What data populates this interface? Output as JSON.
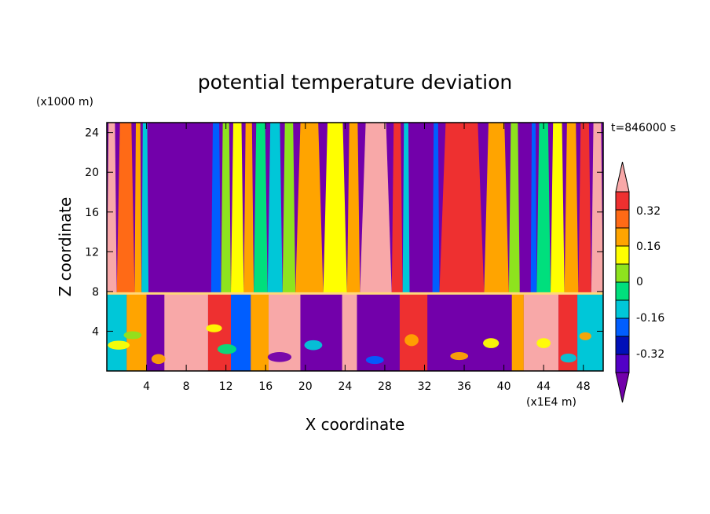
{
  "chart_data": {
    "type": "heatmap",
    "title": "potential temperature deviation",
    "xlabel": "X coordinate",
    "ylabel": "Z coordinate",
    "x_unit": "(x1E4 m)",
    "y_unit": "(x1000 m)",
    "time_label": "t=846000 s",
    "x_ticks": [
      4,
      8,
      12,
      16,
      20,
      24,
      28,
      32,
      36,
      40,
      44,
      48
    ],
    "y_ticks": [
      4,
      8,
      12,
      16,
      20,
      24
    ],
    "xlim": [
      0,
      50
    ],
    "ylim": [
      0,
      25
    ],
    "colorbar_ticks": [
      "0.32",
      "0.16",
      "0",
      "-0.16",
      "-0.32"
    ],
    "colorbar_levels": [
      {
        "label": "> 0.40",
        "color": "#f8a8a8"
      },
      {
        "label": "0.32 to 0.40",
        "color": "#ee3030"
      },
      {
        "label": "0.24 to 0.32",
        "color": "#ff6a16"
      },
      {
        "label": "0.16 to 0.24",
        "color": "#ffa400"
      },
      {
        "label": "0.08 to 0.16",
        "color": "#ffff00"
      },
      {
        "label": "0 to 0.08",
        "color": "#8ee31e"
      },
      {
        "label": "-0.08 to 0",
        "color": "#00df7d"
      },
      {
        "label": "-0.16 to -0.08",
        "color": "#00c7d8"
      },
      {
        "label": "-0.24 to -0.16",
        "color": "#005eff"
      },
      {
        "label": "-0.32 to -0.24",
        "color": "#0010b8"
      },
      {
        "label": "-0.40 to -0.32",
        "color": "#5200c6"
      },
      {
        "label": "< -0.40",
        "color": "#7200aa"
      }
    ],
    "upper_bands": [
      [
        0,
        1.0,
        "#f8a8a8"
      ],
      [
        1.0,
        2.8,
        "#ff6a16"
      ],
      [
        2.8,
        3.5,
        "#ffa400"
      ],
      [
        3.5,
        4.2,
        "#00c7d8"
      ],
      [
        4.2,
        10.5,
        "#7200aa"
      ],
      [
        10.5,
        11.5,
        "#005eff"
      ],
      [
        11.5,
        12.5,
        "#8ee31e"
      ],
      [
        12.5,
        13.8,
        "#ffff00"
      ],
      [
        13.8,
        14.8,
        "#ffa400"
      ],
      [
        14.8,
        16.2,
        "#00df7d"
      ],
      [
        16.2,
        17.7,
        "#00c7d8"
      ],
      [
        17.7,
        19.0,
        "#8ee31e"
      ],
      [
        19.0,
        21.8,
        "#ffa400"
      ],
      [
        21.8,
        24.2,
        "#ffff00"
      ],
      [
        24.2,
        25.5,
        "#ffa400"
      ],
      [
        25.5,
        28.7,
        "#f8a8a8"
      ],
      [
        28.7,
        29.8,
        "#ee3030"
      ],
      [
        29.8,
        30.5,
        "#00c7d8"
      ],
      [
        30.5,
        32.8,
        "#7200aa"
      ],
      [
        32.8,
        33.5,
        "#005eff"
      ],
      [
        33.5,
        38.0,
        "#ee3030"
      ],
      [
        38.0,
        40.5,
        "#ffa400"
      ],
      [
        40.5,
        41.6,
        "#8ee31e"
      ],
      [
        41.6,
        42.7,
        "#7200aa"
      ],
      [
        42.7,
        43.3,
        "#005eff"
      ],
      [
        43.3,
        44.7,
        "#00df7d"
      ],
      [
        44.7,
        46.1,
        "#ffff00"
      ],
      [
        46.1,
        47.5,
        "#ffa400"
      ],
      [
        47.5,
        48.8,
        "#ee3030"
      ],
      [
        48.8,
        50,
        "#f8a8a8"
      ]
    ],
    "lower_bands": [
      [
        0,
        2.0,
        "#00c7d8"
      ],
      [
        2.0,
        4.0,
        "#ffa400"
      ],
      [
        4.0,
        5.8,
        "#7200aa"
      ],
      [
        5.8,
        10.2,
        "#f8a8a8"
      ],
      [
        10.2,
        12.5,
        "#ee3030"
      ],
      [
        12.5,
        14.5,
        "#005eff"
      ],
      [
        14.5,
        16.3,
        "#ffa400"
      ],
      [
        16.3,
        19.5,
        "#f8a8a8"
      ],
      [
        19.5,
        23.7,
        "#7200aa"
      ],
      [
        23.7,
        25.2,
        "#f8a8a8"
      ],
      [
        25.2,
        29.5,
        "#7200aa"
      ],
      [
        29.5,
        32.3,
        "#ee3030"
      ],
      [
        32.3,
        40.8,
        "#7200aa"
      ],
      [
        40.8,
        42.0,
        "#ffa400"
      ],
      [
        42.0,
        45.5,
        "#f8a8a8"
      ],
      [
        45.5,
        47.4,
        "#ee3030"
      ],
      [
        47.4,
        50,
        "#00c7d8"
      ]
    ],
    "accent_blobs": [
      {
        "x": 1.2,
        "y": 2.6,
        "w": 2.2,
        "h": 0.9,
        "color": "#ffff00"
      },
      {
        "x": 2.6,
        "y": 3.6,
        "w": 1.8,
        "h": 0.8,
        "color": "#8ee31e"
      },
      {
        "x": 5.2,
        "y": 1.2,
        "w": 1.4,
        "h": 1.0,
        "color": "#ffa400"
      },
      {
        "x": 10.8,
        "y": 4.3,
        "w": 1.6,
        "h": 0.8,
        "color": "#ffff00"
      },
      {
        "x": 12.1,
        "y": 2.2,
        "w": 1.9,
        "h": 1.0,
        "color": "#00df7d"
      },
      {
        "x": 15.4,
        "y": 5.0,
        "w": 1.6,
        "h": 1.0,
        "color": "#ffa400"
      },
      {
        "x": 17.4,
        "y": 1.4,
        "w": 2.4,
        "h": 1.0,
        "color": "#7200aa"
      },
      {
        "x": 20.8,
        "y": 2.6,
        "w": 1.8,
        "h": 1.0,
        "color": "#00c7d8"
      },
      {
        "x": 27.0,
        "y": 1.1,
        "w": 1.8,
        "h": 0.8,
        "color": "#005eff"
      },
      {
        "x": 30.7,
        "y": 3.1,
        "w": 1.4,
        "h": 1.2,
        "color": "#ffa400"
      },
      {
        "x": 35.5,
        "y": 1.5,
        "w": 1.8,
        "h": 0.8,
        "color": "#ffa400"
      },
      {
        "x": 38.7,
        "y": 2.8,
        "w": 1.6,
        "h": 1.0,
        "color": "#ffff00"
      },
      {
        "x": 44.0,
        "y": 2.8,
        "w": 1.4,
        "h": 1.0,
        "color": "#ffff00"
      },
      {
        "x": 46.5,
        "y": 1.3,
        "w": 1.6,
        "h": 0.9,
        "color": "#00c7d8"
      },
      {
        "x": 48.2,
        "y": 3.5,
        "w": 1.2,
        "h": 0.8,
        "color": "#ffa400"
      }
    ],
    "boundary_line_color": "#ffd77a",
    "boundary_y": 7.8
  }
}
